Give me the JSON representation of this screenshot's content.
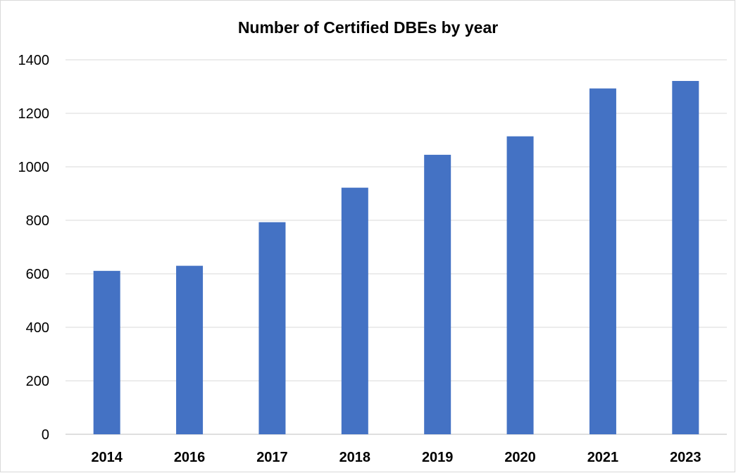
{
  "chart_data": {
    "type": "bar",
    "title": "Number of Certified DBEs by year",
    "xlabel": "",
    "ylabel": "",
    "categories": [
      "2014",
      "2016",
      "2017",
      "2018",
      "2019",
      "2020",
      "2021",
      "2023"
    ],
    "series": [
      {
        "values": [
          611,
          630,
          793,
          922,
          1045,
          1114,
          1293,
          1321
        ],
        "color": "#4472c4"
      }
    ],
    "ylim": [
      0,
      1400
    ],
    "yticks": [
      0,
      200,
      400,
      600,
      800,
      1000,
      1200,
      1400
    ],
    "grid": true,
    "legend": "none"
  }
}
